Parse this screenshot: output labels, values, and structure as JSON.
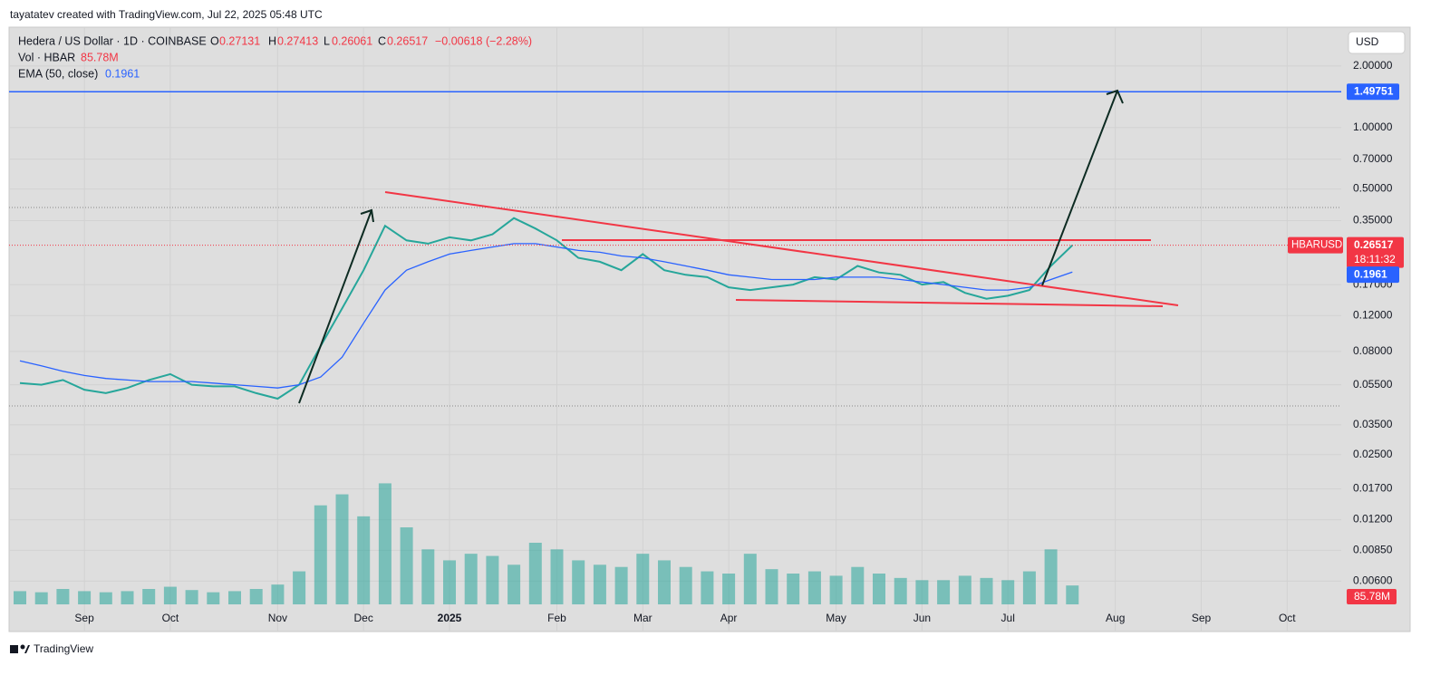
{
  "header": {
    "author_line": "tayatatev created with TradingView.com, Jul 22, 2025 05:48 UTC",
    "brand": "TradingView"
  },
  "chart_data": {
    "type": "line",
    "log_scale": true,
    "grid": true,
    "currency": "USD",
    "categories": [
      null,
      null,
      null,
      "Sep",
      null,
      null,
      null,
      "Oct",
      null,
      null,
      null,
      null,
      "Nov",
      null,
      null,
      null,
      "Dec",
      null,
      null,
      null,
      "2025",
      null,
      null,
      null,
      null,
      "Feb",
      null,
      null,
      null,
      "Mar",
      null,
      null,
      null,
      "Apr",
      null,
      null,
      null,
      null,
      "May",
      null,
      null,
      null,
      "Jun",
      null,
      null,
      null,
      "Jul",
      null,
      null,
      null,
      null,
      "Aug",
      null,
      null,
      null,
      "Sep",
      null,
      null,
      null,
      "Oct",
      null,
      null
    ],
    "series": [
      {
        "name": "Hedera / US Dollar · 1D · COINBASE",
        "color": "#26a69a",
        "values": [
          0.056,
          0.055,
          0.058,
          0.052,
          0.05,
          0.053,
          0.058,
          0.062,
          0.055,
          0.054,
          0.054,
          0.05,
          0.047,
          0.055,
          0.085,
          0.13,
          0.2,
          0.33,
          0.28,
          0.27,
          0.29,
          0.28,
          0.3,
          0.36,
          0.32,
          0.28,
          0.23,
          0.22,
          0.2,
          0.24,
          0.2,
          0.19,
          0.185,
          0.165,
          0.16,
          0.165,
          0.17,
          0.185,
          0.18,
          0.21,
          0.195,
          0.19,
          0.17,
          0.175,
          0.155,
          0.145,
          0.15,
          0.16,
          0.21,
          0.265,
          null,
          null,
          null,
          null,
          null,
          null,
          null,
          null,
          null,
          null,
          null,
          null
        ]
      },
      {
        "name": "EMA (50, close)",
        "color": "#2962ff",
        "values": [
          0.072,
          0.068,
          0.064,
          0.061,
          0.059,
          0.058,
          0.057,
          0.057,
          0.057,
          0.056,
          0.055,
          0.054,
          0.053,
          0.055,
          0.06,
          0.075,
          0.11,
          0.16,
          0.2,
          0.22,
          0.24,
          0.25,
          0.26,
          0.27,
          0.27,
          0.26,
          0.25,
          0.245,
          0.235,
          0.23,
          0.22,
          0.21,
          0.2,
          0.19,
          0.185,
          0.18,
          0.18,
          0.18,
          0.185,
          0.185,
          0.185,
          0.18,
          0.175,
          0.17,
          0.165,
          0.16,
          0.16,
          0.165,
          0.18,
          0.196,
          null,
          null,
          null,
          null,
          null,
          null,
          null,
          null,
          null,
          null,
          null,
          null
        ]
      },
      {
        "name": "Vol · HBAR",
        "color": "#26a69a",
        "axis": "y2",
        "values": [
          60,
          55,
          70,
          60,
          55,
          60,
          70,
          80,
          65,
          55,
          60,
          70,
          90,
          150,
          450,
          500,
          400,
          550,
          350,
          250,
          200,
          230,
          220,
          180,
          280,
          250,
          200,
          180,
          170,
          230,
          200,
          170,
          150,
          140,
          230,
          160,
          140,
          150,
          130,
          170,
          140,
          120,
          110,
          110,
          130,
          120,
          110,
          150,
          250,
          85.78,
          null,
          null,
          null,
          null,
          null,
          null,
          null,
          null,
          null,
          null,
          null,
          null
        ]
      }
    ],
    "ohlc": {
      "labels": [
        "O",
        "H",
        "L",
        "C"
      ],
      "values": [
        0.27131,
        0.27413,
        0.26061,
        0.26517
      ]
    },
    "change": "−0.00618 (−2.28%)",
    "volume_label": "85.78M",
    "ema_last": 0.1961,
    "symbol": "HBARUSD",
    "last_price": 0.26517,
    "countdown": "18:11:32",
    "target": 1.49751,
    "ylim": [
      0.0034,
      3.1
    ],
    "yticks": [
      {
        "value": 2,
        "label": "2.00000"
      },
      {
        "value": 1,
        "label": "1.00000"
      },
      {
        "value": 0.7,
        "label": "0.70000"
      },
      {
        "value": 0.5,
        "label": "0.50000"
      },
      {
        "value": 0.35,
        "label": "0.35000"
      },
      {
        "value": 0.17,
        "label": "0.17000"
      },
      {
        "value": 0.12,
        "label": "0.12000"
      },
      {
        "value": 0.08,
        "label": "0.08000"
      },
      {
        "value": 0.055,
        "label": "0.05500"
      },
      {
        "value": 0.035,
        "label": "0.03500"
      },
      {
        "value": 0.025,
        "label": "0.02500"
      },
      {
        "value": 0.017,
        "label": "0.01700"
      },
      {
        "value": 0.012,
        "label": "0.01200"
      },
      {
        "value": 0.0085,
        "label": "0.00850"
      },
      {
        "value": 0.006,
        "label": "0.00600"
      }
    ],
    "y2lim": [
      0,
      700
    ]
  }
}
